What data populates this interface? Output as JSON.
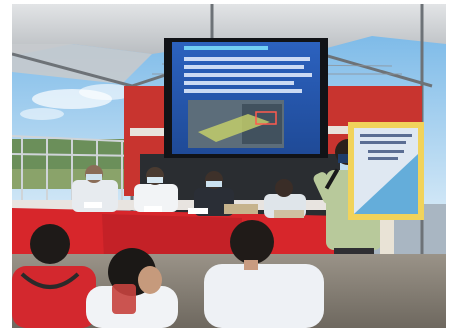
{
  "photo": {
    "scene": "outdoor-briefing-tent",
    "colors": {
      "sky": "#8fc7ee",
      "tent_canopy": "#cfd2d4",
      "tent_frame": "#7c8085",
      "red_banner": "#c8342f",
      "table_cloth": "#d7262b",
      "screen_blue": "#2d5db4",
      "sign_board": "#f1d35b",
      "ground": "#8b8479"
    }
  }
}
